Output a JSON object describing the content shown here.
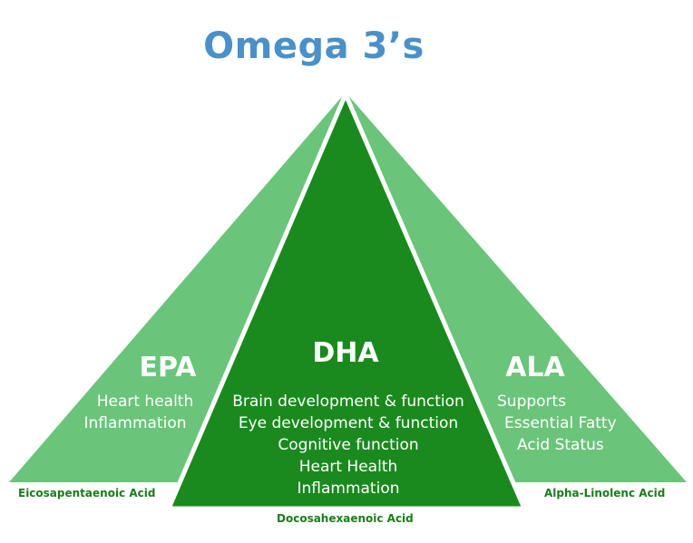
{
  "title": "Omega 3’s",
  "colors": {
    "title": "#4a90c9",
    "light_green": "#6ac47a",
    "dark_green": "#1a8a1e",
    "caption_green": "#1a7d1a"
  },
  "sections": {
    "epa": {
      "heading": "EPA",
      "lines": [
        "Heart health",
        "Inflammation"
      ],
      "full_name": "Eicosapentaenoic Acid"
    },
    "dha": {
      "heading": "DHA",
      "lines": [
        "Brain development & function",
        "Eye development & function",
        "Cognitive function",
        "Heart Health",
        "Inflammation"
      ],
      "full_name": "Docosahexaenoic Acid"
    },
    "ala": {
      "heading": "ALA",
      "lines": [
        "Supports",
        "Essential Fatty",
        "Acid Status"
      ],
      "full_name": "Alpha-Linolenc Acid"
    }
  }
}
